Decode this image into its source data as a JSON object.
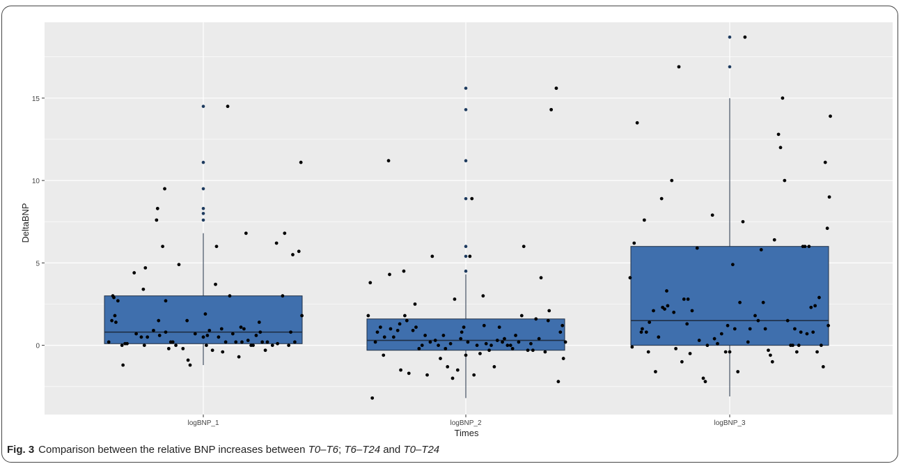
{
  "caption": {
    "label": "Fig. 3",
    "text": "Comparison between the relative BNP increases between T0–T6; T6–T24 and T0–T24"
  },
  "colors": {
    "panel": "#ebebeb",
    "grid": "#ffffff",
    "box_fill": "#3f6fad",
    "box_stroke": "#1f2f45",
    "point": "#000000"
  },
  "chart_data": {
    "type": "boxplot",
    "xlabel": "Times",
    "ylabel": "DeltaBNP",
    "categories": [
      "logBNP_1",
      "logBNP_2",
      "logBNP_3"
    ],
    "ylim": [
      -4.2,
      19.6
    ],
    "yticks": [
      0,
      5,
      10,
      15
    ],
    "grid": true,
    "legend": "none",
    "boxes": [
      {
        "category": "logBNP_1",
        "q1": 0.1,
        "median": 0.8,
        "q3": 3.0,
        "whisker_low": -1.2,
        "whisker_high": 6.8
      },
      {
        "category": "logBNP_2",
        "q1": -0.3,
        "median": 0.3,
        "q3": 1.6,
        "whisker_low": -3.2,
        "whisker_high": 4.3
      },
      {
        "category": "logBNP_3",
        "q1": 0.0,
        "median": 1.5,
        "q3": 6.0,
        "whisker_low": -3.1,
        "whisker_high": 15.0
      }
    ],
    "outliers": [
      {
        "category": "logBNP_1",
        "values": [
          7.6,
          8.0,
          8.3,
          9.5,
          11.1,
          14.5
        ]
      },
      {
        "category": "logBNP_2",
        "values": [
          4.5,
          5.4,
          6.0,
          8.9,
          11.2,
          14.3,
          15.6
        ]
      },
      {
        "category": "logBNP_3",
        "values": [
          16.9,
          18.7
        ]
      }
    ],
    "jitter_points": [
      {
        "category": "logBNP_1",
        "points": [
          [
            -0.93,
            0.2
          ],
          [
            -0.9,
            1.5
          ],
          [
            -0.89,
            3.0
          ],
          [
            -0.88,
            2.9
          ],
          [
            -0.87,
            1.8
          ],
          [
            -0.86,
            1.4
          ],
          [
            -0.84,
            2.7
          ],
          [
            -0.8,
            0.0
          ],
          [
            -0.79,
            -1.2
          ],
          [
            -0.77,
            0.1
          ],
          [
            -0.75,
            0.1
          ],
          [
            -0.68,
            4.4
          ],
          [
            -0.66,
            0.7
          ],
          [
            -0.61,
            0.5
          ],
          [
            -0.59,
            3.4
          ],
          [
            -0.58,
            0.0
          ],
          [
            -0.57,
            4.7
          ],
          [
            -0.55,
            0.5
          ],
          [
            -0.49,
            0.9
          ],
          [
            -0.46,
            7.6
          ],
          [
            -0.45,
            8.3
          ],
          [
            -0.44,
            1.5
          ],
          [
            -0.43,
            0.6
          ],
          [
            -0.4,
            6.0
          ],
          [
            -0.38,
            9.5
          ],
          [
            -0.37,
            2.7
          ],
          [
            -0.37,
            0.8
          ],
          [
            -0.34,
            -0.2
          ],
          [
            -0.32,
            0.2
          ],
          [
            -0.3,
            0.2
          ],
          [
            -0.27,
            0.0
          ],
          [
            -0.24,
            4.9
          ],
          [
            -0.2,
            -0.2
          ],
          [
            -0.16,
            1.5
          ],
          [
            -0.15,
            -0.9
          ],
          [
            -0.13,
            -1.2
          ],
          [
            -0.08,
            0.7
          ],
          [
            0.0,
            0.5
          ],
          [
            0.02,
            1.9
          ],
          [
            0.03,
            0.0
          ],
          [
            0.04,
            0.6
          ],
          [
            0.06,
            0.9
          ],
          [
            0.09,
            -0.3
          ],
          [
            0.12,
            3.7
          ],
          [
            0.13,
            6.0
          ],
          [
            0.15,
            0.5
          ],
          [
            0.18,
            1.0
          ],
          [
            0.19,
            -0.4
          ],
          [
            0.22,
            0.2
          ],
          [
            0.24,
            14.5
          ],
          [
            0.26,
            3.0
          ],
          [
            0.29,
            0.7
          ],
          [
            0.32,
            0.2
          ],
          [
            0.35,
            -0.7
          ],
          [
            0.37,
            1.1
          ],
          [
            0.38,
            0.2
          ],
          [
            0.4,
            1.0
          ],
          [
            0.42,
            6.8
          ],
          [
            0.44,
            0.3
          ],
          [
            0.47,
            0.0
          ],
          [
            0.49,
            0.0
          ],
          [
            0.52,
            0.6
          ],
          [
            0.55,
            1.4
          ],
          [
            0.56,
            0.8
          ],
          [
            0.58,
            0.2
          ],
          [
            0.61,
            -0.3
          ],
          [
            0.63,
            0.2
          ],
          [
            0.68,
            0.0
          ],
          [
            0.72,
            6.2
          ],
          [
            0.73,
            0.1
          ],
          [
            0.78,
            3.0
          ],
          [
            0.8,
            6.8
          ],
          [
            0.84,
            0.0
          ],
          [
            0.86,
            0.8
          ],
          [
            0.88,
            5.5
          ],
          [
            0.9,
            0.2
          ],
          [
            0.94,
            5.7
          ],
          [
            0.96,
            11.1
          ],
          [
            0.97,
            1.8
          ]
        ]
      },
      {
        "category": "logBNP_2",
        "points": [
          [
            -0.96,
            1.8
          ],
          [
            -0.94,
            3.8
          ],
          [
            -0.92,
            -3.2
          ],
          [
            -0.89,
            0.2
          ],
          [
            -0.87,
            0.8
          ],
          [
            -0.84,
            1.1
          ],
          [
            -0.81,
            -0.6
          ],
          [
            -0.8,
            0.5
          ],
          [
            -0.76,
            11.2
          ],
          [
            -0.75,
            4.3
          ],
          [
            -0.74,
            1.0
          ],
          [
            -0.71,
            0.5
          ],
          [
            -0.67,
            0.9
          ],
          [
            -0.65,
            1.3
          ],
          [
            -0.64,
            -1.5
          ],
          [
            -0.61,
            4.5
          ],
          [
            -0.6,
            1.8
          ],
          [
            -0.58,
            1.5
          ],
          [
            -0.56,
            -1.7
          ],
          [
            -0.52,
            0.9
          ],
          [
            -0.5,
            2.5
          ],
          [
            -0.49,
            1.1
          ],
          [
            -0.46,
            -0.2
          ],
          [
            -0.43,
            0.0
          ],
          [
            -0.4,
            0.6
          ],
          [
            -0.38,
            -1.8
          ],
          [
            -0.35,
            0.2
          ],
          [
            -0.33,
            5.4
          ],
          [
            -0.3,
            0.3
          ],
          [
            -0.27,
            0.0
          ],
          [
            -0.25,
            -0.8
          ],
          [
            -0.22,
            0.6
          ],
          [
            -0.2,
            -0.2
          ],
          [
            -0.18,
            -1.3
          ],
          [
            -0.15,
            0.1
          ],
          [
            -0.13,
            -2.0
          ],
          [
            -0.11,
            2.8
          ],
          [
            -0.08,
            -1.5
          ],
          [
            -0.05,
            0.4
          ],
          [
            -0.04,
            0.8
          ],
          [
            -0.02,
            1.1
          ],
          [
            0.0,
            -0.6
          ],
          [
            0.02,
            0.2
          ],
          [
            0.04,
            5.4
          ],
          [
            0.06,
            8.9
          ],
          [
            0.08,
            -1.8
          ],
          [
            0.11,
            0.0
          ],
          [
            0.14,
            -0.5
          ],
          [
            0.17,
            3.0
          ],
          [
            0.18,
            1.2
          ],
          [
            0.2,
            0.1
          ],
          [
            0.23,
            -0.3
          ],
          [
            0.25,
            0.0
          ],
          [
            0.28,
            -1.3
          ],
          [
            0.31,
            0.3
          ],
          [
            0.33,
            1.1
          ],
          [
            0.36,
            0.2
          ],
          [
            0.38,
            0.4
          ],
          [
            0.41,
            0.0
          ],
          [
            0.44,
            0.0
          ],
          [
            0.46,
            -0.2
          ],
          [
            0.49,
            0.6
          ],
          [
            0.52,
            0.2
          ],
          [
            0.55,
            1.8
          ],
          [
            0.57,
            6.0
          ],
          [
            0.61,
            -0.3
          ],
          [
            0.64,
            0.1
          ],
          [
            0.66,
            -0.3
          ],
          [
            0.69,
            1.6
          ],
          [
            0.72,
            0.4
          ],
          [
            0.74,
            4.1
          ],
          [
            0.78,
            -0.4
          ],
          [
            0.81,
            1.5
          ],
          [
            0.82,
            2.1
          ],
          [
            0.84,
            14.3
          ],
          [
            0.89,
            15.6
          ],
          [
            0.91,
            -2.2
          ],
          [
            0.93,
            0.8
          ],
          [
            0.95,
            1.2
          ],
          [
            0.96,
            -0.8
          ],
          [
            0.98,
            0.2
          ]
        ]
      },
      {
        "category": "logBNP_3",
        "points": [
          [
            -0.98,
            4.1
          ],
          [
            -0.96,
            -0.1
          ],
          [
            -0.94,
            6.2
          ],
          [
            -0.91,
            13.5
          ],
          [
            -0.87,
            0.8
          ],
          [
            -0.86,
            1.0
          ],
          [
            -0.84,
            7.6
          ],
          [
            -0.82,
            0.8
          ],
          [
            -0.8,
            -0.4
          ],
          [
            -0.79,
            1.4
          ],
          [
            -0.75,
            2.1
          ],
          [
            -0.73,
            -1.6
          ],
          [
            -0.7,
            0.5
          ],
          [
            -0.67,
            8.9
          ],
          [
            -0.66,
            2.3
          ],
          [
            -0.64,
            2.2
          ],
          [
            -0.62,
            3.3
          ],
          [
            -0.61,
            2.4
          ],
          [
            -0.57,
            10.0
          ],
          [
            -0.55,
            2.0
          ],
          [
            -0.53,
            -0.2
          ],
          [
            -0.5,
            16.9
          ],
          [
            -0.47,
            -1.0
          ],
          [
            -0.45,
            2.8
          ],
          [
            -0.42,
            1.3
          ],
          [
            -0.41,
            2.8
          ],
          [
            -0.39,
            -0.5
          ],
          [
            -0.37,
            2.1
          ],
          [
            -0.32,
            5.9
          ],
          [
            -0.3,
            0.3
          ],
          [
            -0.26,
            -2.0
          ],
          [
            -0.24,
            -2.2
          ],
          [
            -0.22,
            0.0
          ],
          [
            -0.17,
            7.9
          ],
          [
            -0.15,
            0.4
          ],
          [
            -0.12,
            0.1
          ],
          [
            -0.08,
            0.7
          ],
          [
            -0.04,
            -0.4
          ],
          [
            -0.02,
            1.2
          ],
          [
            0.0,
            -0.4
          ],
          [
            0.03,
            4.9
          ],
          [
            0.05,
            1.0
          ],
          [
            0.08,
            -1.6
          ],
          [
            0.1,
            2.6
          ],
          [
            0.13,
            7.5
          ],
          [
            0.15,
            18.7
          ],
          [
            0.18,
            0.2
          ],
          [
            0.2,
            1.0
          ],
          [
            0.25,
            1.8
          ],
          [
            0.28,
            1.5
          ],
          [
            0.31,
            5.8
          ],
          [
            0.33,
            2.6
          ],
          [
            0.35,
            1.0
          ],
          [
            0.38,
            -0.3
          ],
          [
            0.4,
            -0.6
          ],
          [
            0.42,
            -1.0
          ],
          [
            0.44,
            6.4
          ],
          [
            0.48,
            12.8
          ],
          [
            0.5,
            12.0
          ],
          [
            0.52,
            15.0
          ],
          [
            0.54,
            10.0
          ],
          [
            0.57,
            1.5
          ],
          [
            0.6,
            0.0
          ],
          [
            0.62,
            0.0
          ],
          [
            0.64,
            1.0
          ],
          [
            0.66,
            -0.4
          ],
          [
            0.68,
            0.0
          ],
          [
            0.7,
            0.8
          ],
          [
            0.72,
            6.0
          ],
          [
            0.74,
            6.0
          ],
          [
            0.76,
            0.7
          ],
          [
            0.78,
            6.0
          ],
          [
            0.8,
            2.3
          ],
          [
            0.82,
            0.8
          ],
          [
            0.84,
            2.4
          ],
          [
            0.86,
            -0.4
          ],
          [
            0.88,
            2.9
          ],
          [
            0.9,
            0.0
          ],
          [
            0.92,
            -1.3
          ],
          [
            0.94,
            11.1
          ],
          [
            0.96,
            7.1
          ],
          [
            0.97,
            1.2
          ],
          [
            0.98,
            9.0
          ],
          [
            0.99,
            13.9
          ]
        ]
      }
    ]
  }
}
